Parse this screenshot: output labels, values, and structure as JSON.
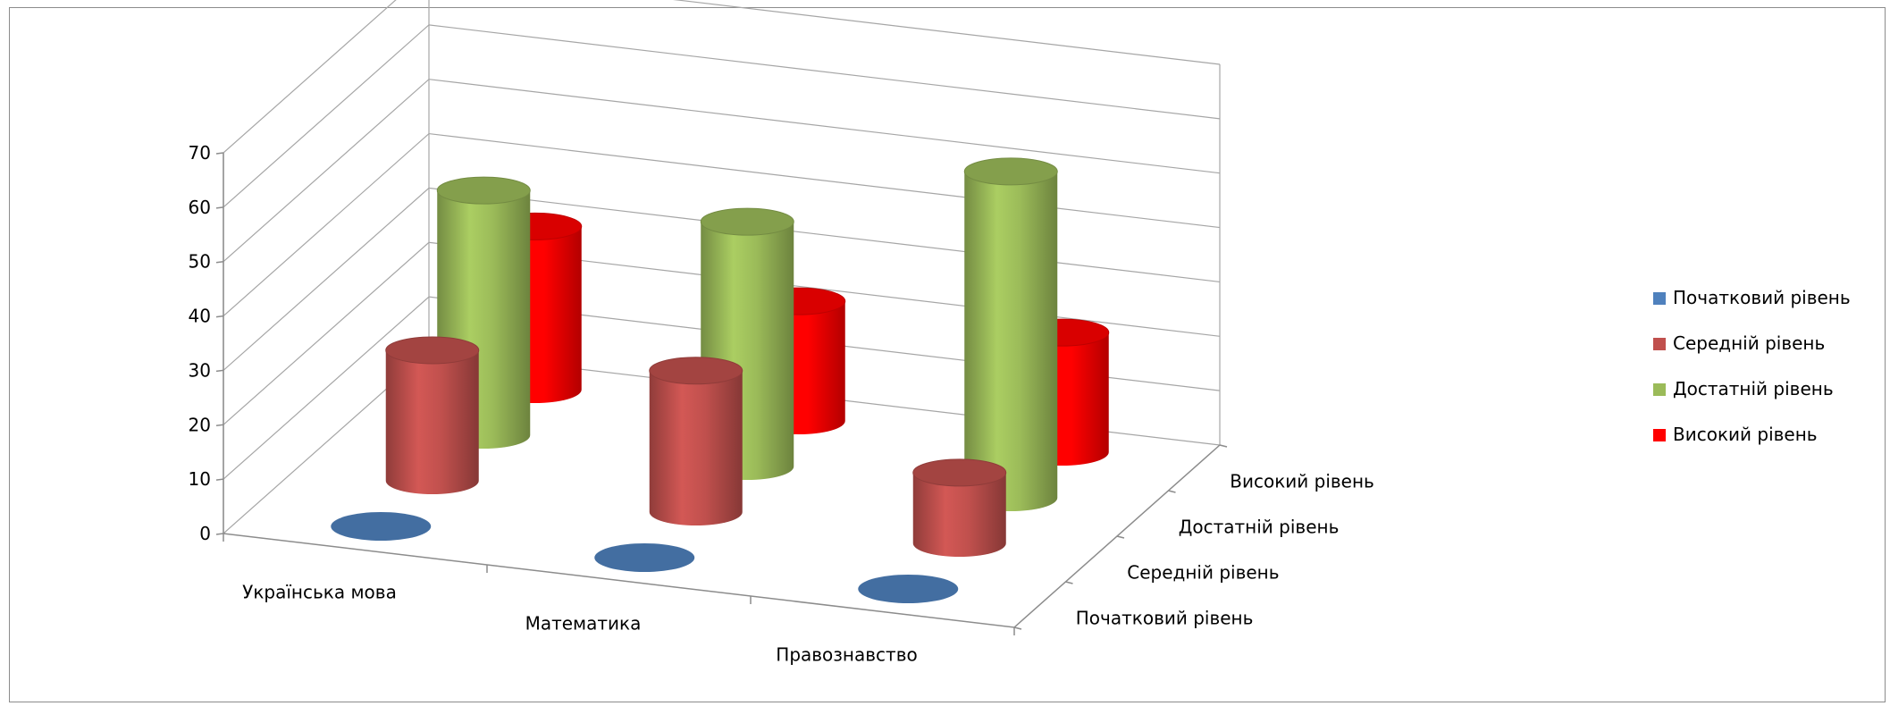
{
  "chart_data": {
    "type": "bar",
    "variant": "3d-cylinder",
    "title": "",
    "xlabel": "",
    "ylabel": "",
    "ylim": [
      0,
      70
    ],
    "yticks": [
      "0",
      "10",
      "20",
      "30",
      "40",
      "50",
      "60",
      "70"
    ],
    "categories": [
      "Українська мова",
      "Математика",
      "Правознавство"
    ],
    "series": [
      {
        "name": "Початковий рівень",
        "color": "#4f81bd",
        "values": [
          0,
          0,
          0
        ]
      },
      {
        "name": "Середній рівень",
        "color": "#c0504d",
        "values": [
          24,
          26,
          13
        ]
      },
      {
        "name": "Достатній рівень",
        "color": "#9bbb59",
        "values": [
          45,
          45,
          60
        ]
      },
      {
        "name": "Високий рівень",
        "color": "#ff0000",
        "values": [
          30,
          22,
          22
        ]
      }
    ],
    "grid": true,
    "legend_position": "right"
  }
}
